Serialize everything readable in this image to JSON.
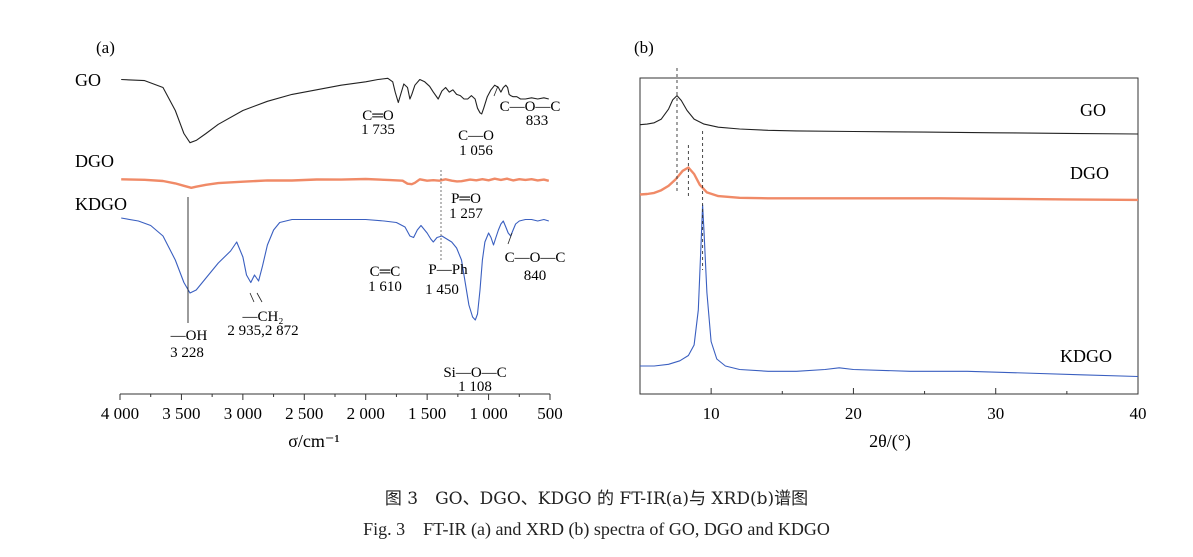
{
  "caption": {
    "cn": "图 3　GO、DGO、KDGO 的 FT-IR(a)与 XRD(b)谱图",
    "en": "Fig. 3　FT-IR (a) and XRD (b) spectra of GO, DGO and KDGO"
  },
  "chart_data": [
    {
      "panel_label": "(a)",
      "type": "line",
      "xlabel": "σ/cm⁻¹",
      "xlim": [
        4000,
        500
      ],
      "x_reversed": true,
      "xticks": [
        4000,
        3500,
        3000,
        2500,
        2000,
        1500,
        1000,
        500
      ],
      "xtick_labels": [
        "4 000",
        "3 500",
        "3 000",
        "2 500",
        "2 000",
        "1 500",
        "1 000",
        "500"
      ],
      "y_axis": "none",
      "grid": false,
      "series": [
        {
          "name": "GO",
          "color": "#222222",
          "x": [
            3990,
            3800,
            3650,
            3550,
            3480,
            3430,
            3380,
            3300,
            3200,
            3000,
            2800,
            2600,
            2400,
            2200,
            2000,
            1900,
            1820,
            1780,
            1760,
            1735,
            1715,
            1690,
            1660,
            1640,
            1625,
            1600,
            1560,
            1520,
            1480,
            1450,
            1410,
            1380,
            1350,
            1320,
            1290,
            1260,
            1230,
            1200,
            1170,
            1140,
            1110,
            1090,
            1070,
            1056,
            1040,
            1010,
            980,
            950,
            920,
            900,
            880,
            860,
            845,
            833,
            820,
            800,
            770,
            740,
            700,
            650,
            600,
            550,
            510
          ],
          "y": [
            0.97,
            0.96,
            0.9,
            0.7,
            0.5,
            0.42,
            0.44,
            0.5,
            0.58,
            0.7,
            0.78,
            0.84,
            0.88,
            0.92,
            0.95,
            0.97,
            0.98,
            0.95,
            0.86,
            0.77,
            0.84,
            0.93,
            0.9,
            0.8,
            0.84,
            0.92,
            0.97,
            0.95,
            0.91,
            0.86,
            0.8,
            0.87,
            0.9,
            0.86,
            0.88,
            0.84,
            0.83,
            0.8,
            0.8,
            0.83,
            0.8,
            0.72,
            0.68,
            0.67,
            0.72,
            0.82,
            0.88,
            0.92,
            0.9,
            0.86,
            0.9,
            0.92,
            0.9,
            0.84,
            0.83,
            0.82,
            0.82,
            0.8,
            0.8,
            0.81,
            0.8,
            0.81,
            0.8
          ]
        },
        {
          "name": "DGO",
          "color": "#f08a67",
          "x": [
            3990,
            3800,
            3650,
            3550,
            3480,
            3420,
            3380,
            3300,
            3200,
            3000,
            2800,
            2600,
            2400,
            2200,
            2000,
            1800,
            1700,
            1660,
            1625,
            1600,
            1560,
            1500,
            1450,
            1400,
            1350,
            1300,
            1257,
            1220,
            1150,
            1100,
            1050,
            1000,
            950,
            900,
            850,
            800,
            750,
            700,
            650,
            600,
            550,
            510
          ],
          "y": [
            0.97,
            0.96,
            0.93,
            0.88,
            0.82,
            0.78,
            0.8,
            0.85,
            0.88,
            0.92,
            0.94,
            0.95,
            0.96,
            0.97,
            0.97,
            0.96,
            0.93,
            0.88,
            0.85,
            0.9,
            0.96,
            0.95,
            0.94,
            0.95,
            0.96,
            0.95,
            0.91,
            0.94,
            0.95,
            0.96,
            0.96,
            0.96,
            0.97,
            0.97,
            0.97,
            0.96,
            0.96,
            0.97,
            0.96,
            0.96,
            0.95,
            0.95
          ]
        },
        {
          "name": "KDGO",
          "color": "#3a5fc0",
          "x": [
            3990,
            3850,
            3750,
            3650,
            3550,
            3480,
            3430,
            3380,
            3300,
            3200,
            3100,
            3050,
            3000,
            2970,
            2935,
            2905,
            2872,
            2840,
            2800,
            2750,
            2700,
            2600,
            2400,
            2200,
            2000,
            1850,
            1750,
            1680,
            1640,
            1610,
            1580,
            1550,
            1500,
            1470,
            1450,
            1420,
            1380,
            1340,
            1300,
            1260,
            1220,
            1190,
            1160,
            1130,
            1108,
            1090,
            1070,
            1050,
            1030,
            1000,
            980,
            960,
            940,
            920,
            900,
            880,
            860,
            840,
            820,
            800,
            780,
            750,
            700,
            650,
            600,
            550,
            510
          ],
          "y": [
            0.98,
            0.96,
            0.93,
            0.86,
            0.7,
            0.55,
            0.48,
            0.5,
            0.58,
            0.68,
            0.76,
            0.82,
            0.72,
            0.6,
            0.55,
            0.6,
            0.56,
            0.66,
            0.8,
            0.9,
            0.95,
            0.97,
            0.97,
            0.97,
            0.97,
            0.96,
            0.95,
            0.92,
            0.86,
            0.85,
            0.9,
            0.93,
            0.88,
            0.84,
            0.82,
            0.85,
            0.86,
            0.84,
            0.82,
            0.78,
            0.7,
            0.55,
            0.4,
            0.32,
            0.3,
            0.34,
            0.5,
            0.7,
            0.82,
            0.88,
            0.85,
            0.8,
            0.85,
            0.9,
            0.94,
            0.96,
            0.92,
            0.88,
            0.86,
            0.9,
            0.94,
            0.96,
            0.97,
            0.97,
            0.96,
            0.97,
            0.96
          ]
        }
      ],
      "annotations": [
        {
          "text": "C═O",
          "sub": "1 735"
        },
        {
          "text": "C—O",
          "sub": "1 056"
        },
        {
          "text": "C—O—C",
          "sub": "833"
        },
        {
          "text": "P═O",
          "sub": "1 257"
        },
        {
          "text": "C═C",
          "sub": "1 610"
        },
        {
          "text": "P—Ph",
          "sub": "1 450"
        },
        {
          "text": "C—O—C",
          "sub": "840"
        },
        {
          "text": "—CH₂",
          "sub": "2 935,2 872"
        },
        {
          "text": "—OH",
          "sub": "3 228"
        },
        {
          "text": "Si—O—C",
          "sub": "1 108"
        }
      ]
    },
    {
      "panel_label": "(b)",
      "type": "line",
      "xlabel": "2θ/(°)",
      "xlim": [
        5,
        40
      ],
      "xticks": [
        10,
        20,
        30,
        40
      ],
      "y_axis": "none",
      "grid": false,
      "series": [
        {
          "name": "GO",
          "color": "#222222",
          "peak_2theta": 7.6,
          "x": [
            5,
            5.5,
            6,
            6.5,
            7,
            7.3,
            7.6,
            7.9,
            8.3,
            8.8,
            9.5,
            10.5,
            12,
            14,
            16,
            20,
            25,
            30,
            35,
            40
          ],
          "y": [
            0.15,
            0.16,
            0.18,
            0.24,
            0.4,
            0.55,
            0.62,
            0.54,
            0.38,
            0.24,
            0.16,
            0.11,
            0.08,
            0.06,
            0.05,
            0.04,
            0.03,
            0.02,
            0.01,
            0.0
          ]
        },
        {
          "name": "DGO",
          "color": "#f08a67",
          "peak_2theta": 8.4,
          "x": [
            5,
            5.5,
            6,
            6.5,
            7,
            7.5,
            8,
            8.4,
            8.8,
            9.2,
            9.7,
            10.5,
            12,
            14,
            18,
            22,
            26,
            30,
            35,
            40
          ],
          "y": [
            0.12,
            0.13,
            0.15,
            0.2,
            0.28,
            0.4,
            0.56,
            0.62,
            0.5,
            0.3,
            0.16,
            0.09,
            0.06,
            0.05,
            0.05,
            0.05,
            0.05,
            0.04,
            0.03,
            0.02
          ]
        },
        {
          "name": "KDGO",
          "color": "#3a5fc0",
          "peak_2theta": 9.4,
          "x": [
            5,
            6,
            7,
            7.8,
            8.4,
            8.8,
            9.1,
            9.3,
            9.4,
            9.5,
            9.7,
            10,
            10.4,
            11,
            12,
            14,
            16,
            18,
            19,
            20,
            24,
            28,
            32,
            36,
            40
          ],
          "y": [
            0.08,
            0.08,
            0.09,
            0.11,
            0.14,
            0.2,
            0.4,
            0.8,
            1.0,
            0.85,
            0.5,
            0.22,
            0.12,
            0.08,
            0.06,
            0.05,
            0.05,
            0.06,
            0.07,
            0.06,
            0.05,
            0.05,
            0.04,
            0.03,
            0.02
          ]
        }
      ]
    }
  ]
}
